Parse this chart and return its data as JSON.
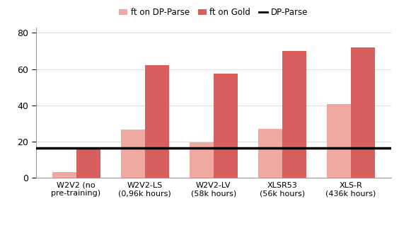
{
  "categories": [
    "W2V2 (no\npre-training)",
    "W2V2-LS\n(0,96k hours)",
    "W2V2-LV\n(58k hours)",
    "XLSR53\n(56k hours)",
    "XLS-R\n(436k hours)"
  ],
  "ft_on_dp_parse": [
    3.0,
    26.5,
    19.5,
    27.0,
    40.5
  ],
  "ft_on_gold": [
    17.0,
    62.0,
    57.5,
    70.0,
    72.0
  ],
  "dp_parse_line": 16.5,
  "color_dp_parse_bar": "#f0a9a0",
  "color_gold_bar": "#d95f5f",
  "color_line": "#000000",
  "ylim": [
    0,
    83
  ],
  "yticks": [
    0,
    20,
    40,
    60,
    80
  ],
  "legend_labels": [
    "ft on DP-Parse",
    "ft on Gold",
    "DP-Parse"
  ],
  "bar_width": 0.35,
  "figsize": [
    5.64,
    3.22
  ],
  "dpi": 100
}
